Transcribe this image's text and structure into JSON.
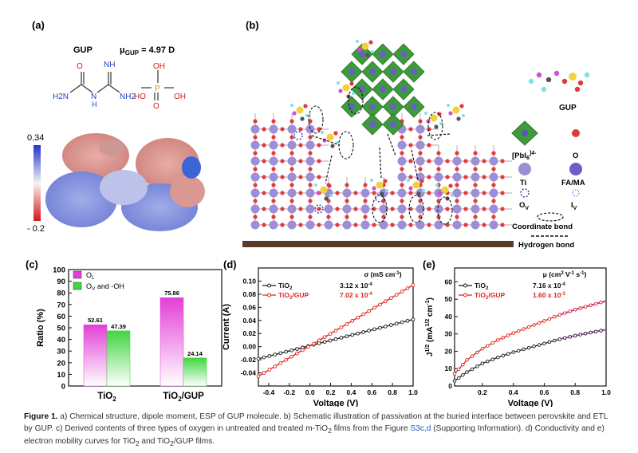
{
  "panel_a": {
    "label": "(a)",
    "molecule_name": "GUP",
    "dipole_prefix": "μ",
    "dipole_sub": "GUP",
    "dipole_value": " = 4.97 D",
    "atoms": {
      "O1": "O",
      "H2N_1": "H2N",
      "N1": "N",
      "H1": "H",
      "NH": "NH",
      "NH2": "NH2",
      "OH1": "OH",
      "P": "P",
      "HO": "HO",
      "OH2": "OH",
      "O2": "O"
    },
    "colorbar_max": "0.34",
    "colorbar_min": "- 0.2"
  },
  "panel_b": {
    "label": "(b)",
    "legend": {
      "molecule": "GUP",
      "pbi6": "[PbI",
      "pbi6_sub": "6",
      "pbi6_sup": "]4-",
      "o": "O",
      "ti": "Ti",
      "fama": "FA/MA",
      "ov": "O",
      "ov_sub": "V",
      "iv": "I",
      "iv_sub": "V",
      "coord_bond": "Coordinate bond",
      "h_bond": "Hydrogen bond"
    },
    "colors": {
      "octahedra": "#3d9b3a",
      "ti": "#9d8fd4",
      "o": "#e03b3b",
      "fama": "#6a5ec7",
      "p": "#f2d23a",
      "h": "#7ee3df",
      "n": "#d24fd4"
    }
  },
  "chart_data": [
    {
      "panel": "(c)",
      "type": "bar",
      "categories": [
        "TiO2",
        "TiO2/GUP"
      ],
      "category_labels": [
        {
          "main": "TiO",
          "sub": "2",
          "tail": ""
        },
        {
          "main": "TiO",
          "sub": "2",
          "tail": "/GUP"
        }
      ],
      "series": [
        {
          "name": "OL",
          "name_main": "O",
          "name_sub": "L",
          "values": [
            52.61,
            75.86
          ],
          "labels": [
            "52.61",
            "75.86"
          ],
          "color": "#e23fd6"
        },
        {
          "name": "OV and -OH",
          "name_main": "O",
          "name_sub": "V",
          "name_tail": " and -OH",
          "values": [
            47.39,
            24.14
          ],
          "labels": [
            "47.39",
            "24.14"
          ],
          "color": "#3fd63f"
        }
      ],
      "ylabel": "Ratio (%)",
      "ylim": [
        0,
        100
      ],
      "yticks": [
        "0",
        "10",
        "20",
        "30",
        "40",
        "50",
        "60",
        "70",
        "80",
        "90",
        "100"
      ]
    },
    {
      "panel": "(d)",
      "type": "line",
      "xlabel": "Voltage (V)",
      "ylabel": "Current (A)",
      "xlim": [
        -0.5,
        1.0
      ],
      "ylim": [
        -0.06,
        0.12
      ],
      "xticks": [
        "-0.4",
        "-0.2",
        "0.0",
        "0.2",
        "0.4",
        "0.6",
        "0.8",
        "1.0"
      ],
      "yticks": [
        "-0.04",
        "-0.02",
        "0.00",
        "0.02",
        "0.04",
        "0.06",
        "0.08",
        "0.10"
      ],
      "legend_title": "σ (mS cm",
      "legend_title_sup": "-1",
      "legend_title_tail": ")",
      "series": [
        {
          "name": "TiO2",
          "name_main": "TiO",
          "name_sub": "2",
          "value_label": "3.12 x 10",
          "value_exp": "-4",
          "color": "#1a1a1a",
          "x": [
            -0.5,
            1.0
          ],
          "y": [
            -0.0185,
            0.0415
          ]
        },
        {
          "name": "TiO2/GUP",
          "name_main": "TiO",
          "name_sub": "2",
          "name_tail": "/GUP",
          "value_label": "7.02 x 10",
          "value_exp": "-4",
          "color": "#e0261d",
          "x": [
            -0.5,
            1.0
          ],
          "y": [
            -0.045,
            0.094
          ]
        }
      ]
    },
    {
      "panel": "(e)",
      "type": "line",
      "xlabel": "Voltage (V)",
      "ylabel": "J",
      "ylabel_sup": "1/2",
      "ylabel_tail": " (mA",
      "ylabel_sup2": "1/2",
      "ylabel_tail2": " cm",
      "ylabel_sup3": "-1",
      "ylabel_end": ")",
      "xlim": [
        0.02,
        1.0
      ],
      "ylim": [
        0,
        68
      ],
      "xticks": [
        "0.2",
        "0.4",
        "0.6",
        "0.8",
        "1.0"
      ],
      "yticks": [
        "0",
        "10",
        "20",
        "30",
        "40",
        "50",
        "60"
      ],
      "legend_title": "μ (cm",
      "legend_title_sup": "2",
      "legend_title_mid": " V",
      "legend_title_sup2": "-1",
      "legend_title_mid2": " s",
      "legend_title_sup3": "-1",
      "legend_title_tail": ")",
      "series": [
        {
          "name": "TiO2",
          "name_main": "TiO",
          "name_sub": "2",
          "value_label": "7.16 x 10",
          "value_exp": "-4",
          "color": "#1a1a1a",
          "fit_color": "#b23fc2",
          "fit_from": 0.62,
          "x": [
            0.02,
            0.1,
            0.2,
            0.3,
            0.4,
            0.5,
            0.6,
            0.7,
            0.8,
            0.9,
            1.0
          ],
          "y": [
            3,
            8,
            13,
            16.5,
            19.5,
            22,
            24.5,
            27,
            29,
            30.8,
            32.5
          ]
        },
        {
          "name": "TiO2/GUP",
          "name_main": "TiO",
          "name_sub": "2",
          "name_tail": "/GUP",
          "value_label": "1.60 x 10",
          "value_exp": "-3",
          "color": "#e0261d",
          "fit_color": "#b23fc2",
          "fit_from": 0.62,
          "x": [
            0.02,
            0.1,
            0.2,
            0.3,
            0.4,
            0.5,
            0.6,
            0.7,
            0.8,
            0.9,
            1.0
          ],
          "y": [
            7,
            15,
            21.5,
            26.5,
            30.5,
            34,
            37.5,
            41,
            44,
            46.5,
            49
          ]
        }
      ]
    }
  ],
  "caption": {
    "fig": "Figure 1.",
    "t1": " a) Chemical structure, dipole moment, ESP of GUP molecule. b) Schematic illustration of passivation at the buried interface between perovskite and ETL by GUP. c) Derived contents of three types of oxygen in untreated and treated m-TiO",
    "t1_sub": "2",
    "t2": " films from the Figure ",
    "link": "S3c,d",
    "t3": " (Supporting Information). d) Conductivity and e) electron mobility curves for TiO",
    "t3_sub": "2",
    "t4": " and TiO",
    "t4_sub": "2",
    "t5": "/GUP films."
  }
}
